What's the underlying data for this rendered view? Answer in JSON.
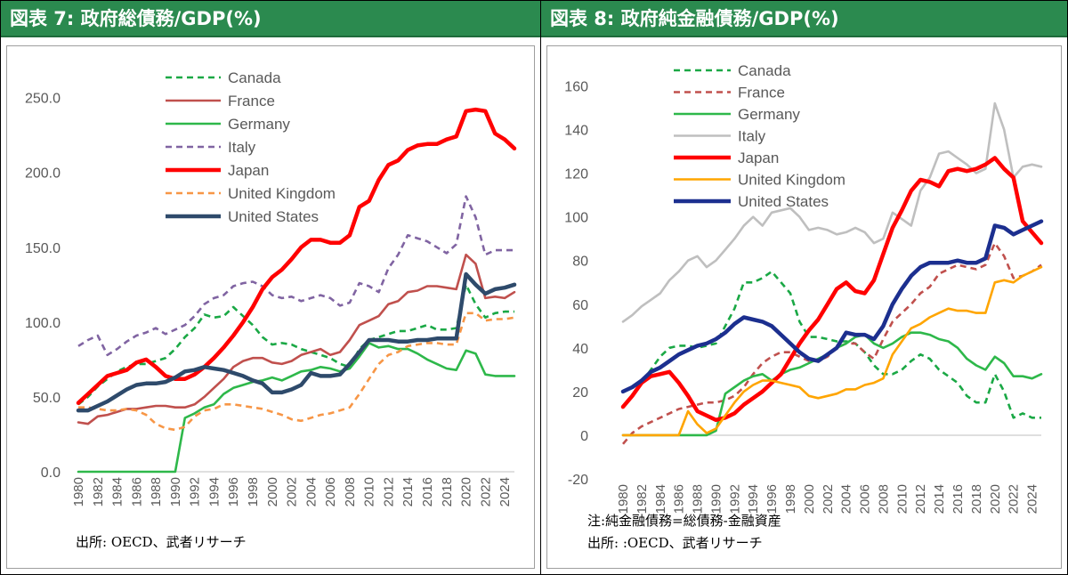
{
  "panels": {
    "left": {
      "title": "図表 7: 政府総債務/GDP(%)",
      "source": "出所: OECD、武者リサーチ"
    },
    "right": {
      "title": "図表 8: 政府純金融債務/GDP(%)",
      "note": "注:純金融債務=総債務-金融資産",
      "source": "出所: :OECD、武者リサーチ"
    }
  },
  "chart_data": [
    {
      "type": "line",
      "title": "",
      "xlabel": "",
      "ylabel": "",
      "x": [
        1980,
        1981,
        1982,
        1983,
        1984,
        1985,
        1986,
        1987,
        1988,
        1989,
        1990,
        1991,
        1992,
        1993,
        1994,
        1995,
        1996,
        1997,
        1998,
        1999,
        2000,
        2001,
        2002,
        2003,
        2004,
        2005,
        2006,
        2007,
        2008,
        2009,
        2010,
        2011,
        2012,
        2013,
        2014,
        2015,
        2016,
        2017,
        2018,
        2019,
        2020,
        2021,
        2022,
        2023,
        2024,
        2025
      ],
      "x_tick_labels": [
        "1980",
        "1982",
        "1984",
        "1986",
        "1988",
        "1990",
        "1992",
        "1994",
        "1996",
        "1998",
        "2000",
        "2002",
        "2004",
        "2006",
        "2008",
        "2010",
        "2012",
        "2014",
        "2016",
        "2018",
        "2020",
        "2022",
        "2024"
      ],
      "ylim": [
        0,
        270
      ],
      "y_ticks": [
        0,
        50,
        100,
        150,
        200,
        250
      ],
      "y_tick_labels": [
        "0.0",
        "50.0",
        "100.0",
        "150.0",
        "200.0",
        "250.0"
      ],
      "legend_position": "top-left",
      "grid": false,
      "series": [
        {
          "name": "Canada",
          "color": "#1aa845",
          "dash": true,
          "values": [
            45,
            50,
            57,
            62,
            67,
            70,
            72,
            72,
            74,
            76,
            82,
            90,
            96,
            105,
            103,
            104,
            110,
            104,
            98,
            90,
            85,
            86,
            85,
            82,
            80,
            78,
            76,
            72,
            70,
            82,
            88,
            90,
            92,
            94,
            94,
            96,
            98,
            95,
            95,
            96,
            125,
            112,
            103,
            106,
            107,
            107
          ]
        },
        {
          "name": "France",
          "color": "#c0504d",
          "dash": false,
          "values": [
            33,
            32,
            37,
            38,
            40,
            42,
            42,
            43,
            44,
            44,
            43,
            43,
            45,
            50,
            56,
            62,
            70,
            74,
            76,
            76,
            73,
            72,
            74,
            78,
            80,
            82,
            78,
            80,
            88,
            98,
            101,
            104,
            112,
            114,
            120,
            121,
            124,
            124,
            123,
            122,
            145,
            139,
            116,
            117,
            116,
            120
          ]
        },
        {
          "name": "Germany",
          "color": "#2eb84a",
          "dash": false,
          "values": [
            0,
            0,
            0,
            0,
            0,
            0,
            0,
            0,
            0,
            0,
            0,
            36,
            39,
            43,
            45,
            52,
            56,
            58,
            60,
            61,
            63,
            61,
            64,
            67,
            68,
            70,
            69,
            67,
            69,
            77,
            86,
            83,
            84,
            82,
            82,
            79,
            75,
            72,
            69,
            68,
            81,
            79,
            65,
            64,
            64,
            64
          ]
        },
        {
          "name": "Italy",
          "color": "#8064a2",
          "dash": true,
          "values": [
            84,
            88,
            91,
            78,
            82,
            87,
            91,
            93,
            96,
            92,
            95,
            98,
            104,
            112,
            116,
            118,
            124,
            126,
            127,
            124,
            118,
            116,
            117,
            114,
            116,
            118,
            116,
            111,
            113,
            126,
            124,
            120,
            136,
            145,
            158,
            156,
            154,
            150,
            146,
            152,
            184,
            170,
            145,
            148,
            148,
            148
          ]
        },
        {
          "name": "Japan",
          "color": "#ff0000",
          "dash": false,
          "values": [
            46,
            52,
            58,
            64,
            66,
            68,
            73,
            75,
            70,
            64,
            62,
            62,
            65,
            70,
            76,
            83,
            91,
            100,
            110,
            122,
            130,
            135,
            142,
            150,
            155,
            155,
            153,
            153,
            158,
            177,
            181,
            195,
            205,
            208,
            215,
            218,
            219,
            219,
            222,
            224,
            241,
            242,
            241,
            226,
            222,
            216
          ]
        },
        {
          "name": "United Kingdom",
          "color": "#f79646",
          "dash": true,
          "values": [
            43,
            43,
            42,
            41,
            41,
            42,
            41,
            38,
            32,
            29,
            28,
            30,
            37,
            41,
            42,
            45,
            45,
            44,
            43,
            42,
            40,
            38,
            35,
            34,
            36,
            38,
            39,
            41,
            43,
            52,
            62,
            72,
            78,
            80,
            84,
            85,
            86,
            86,
            85,
            85,
            106,
            106,
            101,
            102,
            102,
            103
          ]
        },
        {
          "name": "United States",
          "color": "#2e4a6b",
          "dash": false,
          "values": [
            41,
            41,
            44,
            47,
            51,
            55,
            58,
            59,
            59,
            60,
            63,
            67,
            68,
            70,
            69,
            68,
            66,
            64,
            61,
            59,
            53,
            53,
            55,
            58,
            66,
            64,
            64,
            65,
            72,
            80,
            88,
            88,
            88,
            87,
            87,
            88,
            88,
            89,
            89,
            89,
            132,
            125,
            119,
            122,
            123,
            125
          ]
        }
      ]
    },
    {
      "type": "line",
      "title": "",
      "xlabel": "",
      "ylabel": "",
      "x": [
        1980,
        1981,
        1982,
        1983,
        1984,
        1985,
        1986,
        1987,
        1988,
        1989,
        1990,
        1991,
        1992,
        1993,
        1994,
        1995,
        1996,
        1997,
        1998,
        1999,
        2000,
        2001,
        2002,
        2003,
        2004,
        2005,
        2006,
        2007,
        2008,
        2009,
        2010,
        2011,
        2012,
        2013,
        2014,
        2015,
        2016,
        2017,
        2018,
        2019,
        2020,
        2021,
        2022,
        2023,
        2024,
        2025
      ],
      "x_tick_labels": [
        "1980",
        "1982",
        "1984",
        "1986",
        "1988",
        "1990",
        "1992",
        "1994",
        "1996",
        "1998",
        "2000",
        "2002",
        "2004",
        "2006",
        "2008",
        "2010",
        "2012",
        "2014",
        "2016",
        "2018",
        "2020",
        "2022",
        "2024"
      ],
      "ylim": [
        -20,
        170
      ],
      "y_ticks": [
        -20,
        0,
        20,
        40,
        60,
        80,
        100,
        120,
        140,
        160
      ],
      "y_tick_labels": [
        "-20",
        "0",
        "20",
        "40",
        "60",
        "80",
        "100",
        "120",
        "140",
        "160"
      ],
      "legend_position": "top-left",
      "grid": false,
      "series": [
        {
          "name": "Canada",
          "color": "#1aa845",
          "dash": true,
          "values": [
            13,
            18,
            24,
            30,
            36,
            40,
            41,
            41,
            40,
            41,
            42,
            50,
            58,
            70,
            70,
            72,
            75,
            70,
            65,
            52,
            45,
            45,
            44,
            43,
            43,
            42,
            38,
            32,
            28,
            28,
            30,
            34,
            37,
            35,
            30,
            27,
            24,
            18,
            15,
            15,
            28,
            20,
            8,
            10,
            8,
            8
          ]
        },
        {
          "name": "France",
          "color": "#c0504d",
          "dash": true,
          "values": [
            -4,
            1,
            4,
            6,
            8,
            10,
            12,
            13,
            14,
            15,
            15,
            16,
            18,
            22,
            28,
            33,
            36,
            38,
            38,
            36,
            34,
            34,
            36,
            40,
            42,
            42,
            38,
            35,
            44,
            52,
            56,
            60,
            65,
            68,
            74,
            76,
            78,
            77,
            76,
            78,
            88,
            82,
            72,
            73,
            75,
            78
          ]
        },
        {
          "name": "Germany",
          "color": "#2eb84a",
          "dash": false,
          "values": [
            0,
            0,
            0,
            0,
            0,
            0,
            0,
            0,
            0,
            0,
            2,
            19,
            22,
            25,
            27,
            28,
            25,
            28,
            30,
            31,
            33,
            35,
            37,
            40,
            42,
            45,
            46,
            42,
            40,
            42,
            45,
            47,
            47,
            46,
            44,
            43,
            40,
            35,
            32,
            30,
            36,
            33,
            27,
            27,
            26,
            28
          ]
        },
        {
          "name": "Italy",
          "color": "#bfbfbf",
          "dash": false,
          "values": [
            52,
            55,
            59,
            62,
            65,
            71,
            75,
            80,
            82,
            77,
            80,
            85,
            90,
            96,
            100,
            96,
            102,
            103,
            104,
            100,
            94,
            95,
            94,
            92,
            93,
            95,
            93,
            88,
            90,
            102,
            99,
            96,
            112,
            118,
            129,
            130,
            127,
            124,
            120,
            122,
            152,
            140,
            118,
            123,
            124,
            123
          ]
        },
        {
          "name": "Japan",
          "color": "#ff0000",
          "dash": false,
          "values": [
            13,
            18,
            24,
            27,
            28,
            29,
            24,
            18,
            11,
            9,
            7,
            8,
            10,
            14,
            17,
            20,
            24,
            28,
            35,
            42,
            48,
            53,
            60,
            67,
            70,
            66,
            65,
            71,
            83,
            95,
            103,
            112,
            117,
            116,
            114,
            121,
            122,
            121,
            122,
            124,
            127,
            122,
            118,
            98,
            93,
            88
          ]
        },
        {
          "name": "United Kingdom",
          "color": "#ffa500",
          "dash": false,
          "values": [
            0,
            0,
            0,
            0,
            0,
            0,
            0,
            11,
            5,
            1,
            3,
            9,
            15,
            20,
            23,
            25,
            25,
            24,
            23,
            22,
            18,
            17,
            18,
            19,
            21,
            21,
            23,
            24,
            26,
            37,
            43,
            49,
            51,
            54,
            56,
            58,
            57,
            57,
            56,
            56,
            70,
            71,
            70,
            73,
            75,
            77
          ]
        },
        {
          "name": "United States",
          "color": "#1c2f8f",
          "dash": false,
          "values": [
            20,
            22,
            25,
            29,
            31,
            34,
            37,
            39,
            41,
            42,
            44,
            47,
            51,
            54,
            53,
            52,
            50,
            46,
            42,
            38,
            35,
            34,
            37,
            40,
            47,
            46,
            46,
            44,
            50,
            60,
            67,
            73,
            77,
            79,
            79,
            79,
            80,
            79,
            79,
            81,
            96,
            95,
            92,
            94,
            96,
            98
          ]
        }
      ]
    }
  ]
}
